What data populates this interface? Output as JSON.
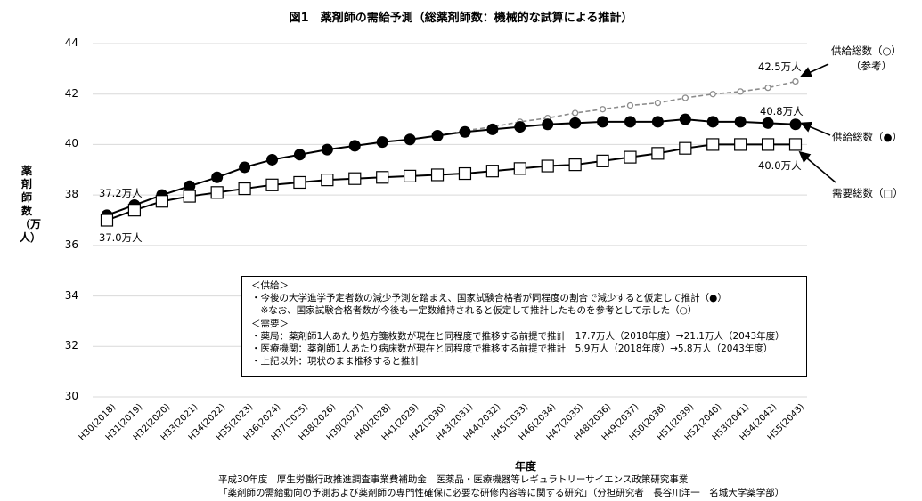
{
  "chart_data": {
    "type": "line",
    "title": "図1　薬剤師の需給予測（総薬剤師数：機械的な試算による推計）",
    "xlabel": "年度",
    "ylabel": "薬剤師数（万人）",
    "ylim": [
      30,
      44
    ],
    "yticks": [
      "44",
      "42",
      "40",
      "38",
      "36",
      "34",
      "32",
      "30"
    ],
    "grid": true,
    "categories": [
      "H30(2018)",
      "H31(2019)",
      "H32(2020)",
      "H33(2021)",
      "H34(2022)",
      "H35(2023)",
      "H36(2024)",
      "H37(2025)",
      "H38(2026)",
      "H39(2027)",
      "H40(2028)",
      "H41(2029)",
      "H42(2030)",
      "H43(2031)",
      "H44(2032)",
      "H45(2033)",
      "H46(2034)",
      "H47(2035)",
      "H48(2036)",
      "H49(2037)",
      "H50(2038)",
      "H51(2039)",
      "H52(2040)",
      "H53(2041)",
      "H54(2042)",
      "H55(2043)"
    ],
    "series": [
      {
        "name": "供給総数（○）（参考）",
        "marker": "open-circle",
        "style": "dashed",
        "color": "#8c8c8c",
        "values": [
          37.2,
          37.6,
          38.0,
          38.35,
          38.7,
          39.1,
          39.4,
          39.6,
          39.8,
          39.95,
          40.1,
          40.2,
          40.35,
          40.55,
          40.7,
          40.9,
          41.05,
          41.25,
          41.4,
          41.55,
          41.65,
          41.85,
          42.0,
          42.1,
          42.25,
          42.5
        ]
      },
      {
        "name": "供給総数（●）",
        "marker": "filled-circle",
        "style": "solid",
        "color": "#000000",
        "values": [
          37.2,
          37.6,
          38.0,
          38.35,
          38.7,
          39.1,
          39.4,
          39.6,
          39.8,
          39.95,
          40.1,
          40.2,
          40.35,
          40.5,
          40.6,
          40.7,
          40.8,
          40.85,
          40.9,
          40.9,
          40.9,
          41.0,
          40.9,
          40.9,
          40.85,
          40.8
        ]
      },
      {
        "name": "需要総数（□）",
        "marker": "open-square",
        "style": "solid",
        "color": "#000000",
        "values": [
          37.0,
          37.4,
          37.75,
          37.95,
          38.1,
          38.25,
          38.4,
          38.5,
          38.6,
          38.65,
          38.7,
          38.75,
          38.8,
          38.85,
          38.95,
          39.05,
          39.15,
          39.2,
          39.35,
          39.5,
          39.65,
          39.85,
          40.0,
          40.0,
          40.0,
          40.0
        ]
      }
    ],
    "annotations": [
      "37.2万人",
      "37.0万人",
      "42.5万人",
      "40.8万人",
      "40.0万人"
    ]
  },
  "labels": {
    "start_supply": "37.2万人",
    "start_demand": "37.0万人",
    "end_reference": "42.5万人",
    "end_supply": "40.8万人",
    "end_demand": "40.0万人",
    "legend_reference_line1": "供給総数（○）",
    "legend_reference_line2": "（参考）",
    "legend_supply": "供給総数（●）",
    "legend_demand": "需要総数（□）"
  },
  "note": {
    "lines": [
      "＜供給＞",
      "・今後の大学進学予定者数の減少予測を踏まえ、国家試験合格者が同程度の割合で減少すると仮定して推計（●）",
      "　※なお、国家試験合格者数が今後も一定数維持されると仮定して推計したものを参考として示した（○）",
      "＜需要＞",
      "・薬局：薬剤師1人あたり処方箋枚数が現在と同程度で推移する前提で推計　17.7万人（2018年度）→21.1万人（2043年度）",
      "・医療機関：薬剤師1人あたり病床数が現在と同程度で推移する前提で推計　5.9万人（2018年度）→5.8万人（2043年度）",
      "・上記以外：現状のまま推移すると推計"
    ]
  },
  "source": {
    "line1": "平成30年度　厚生労働行政推進調査事業費補助金　医薬品・医療機器等レギュラトリーサイエンス政策研究事業",
    "line2": "「薬剤師の需給動向の予測および薬剤師の専門性確保に必要な研修内容等に関する研究」（分担研究者　長谷川洋一　名城大学薬学部）"
  }
}
